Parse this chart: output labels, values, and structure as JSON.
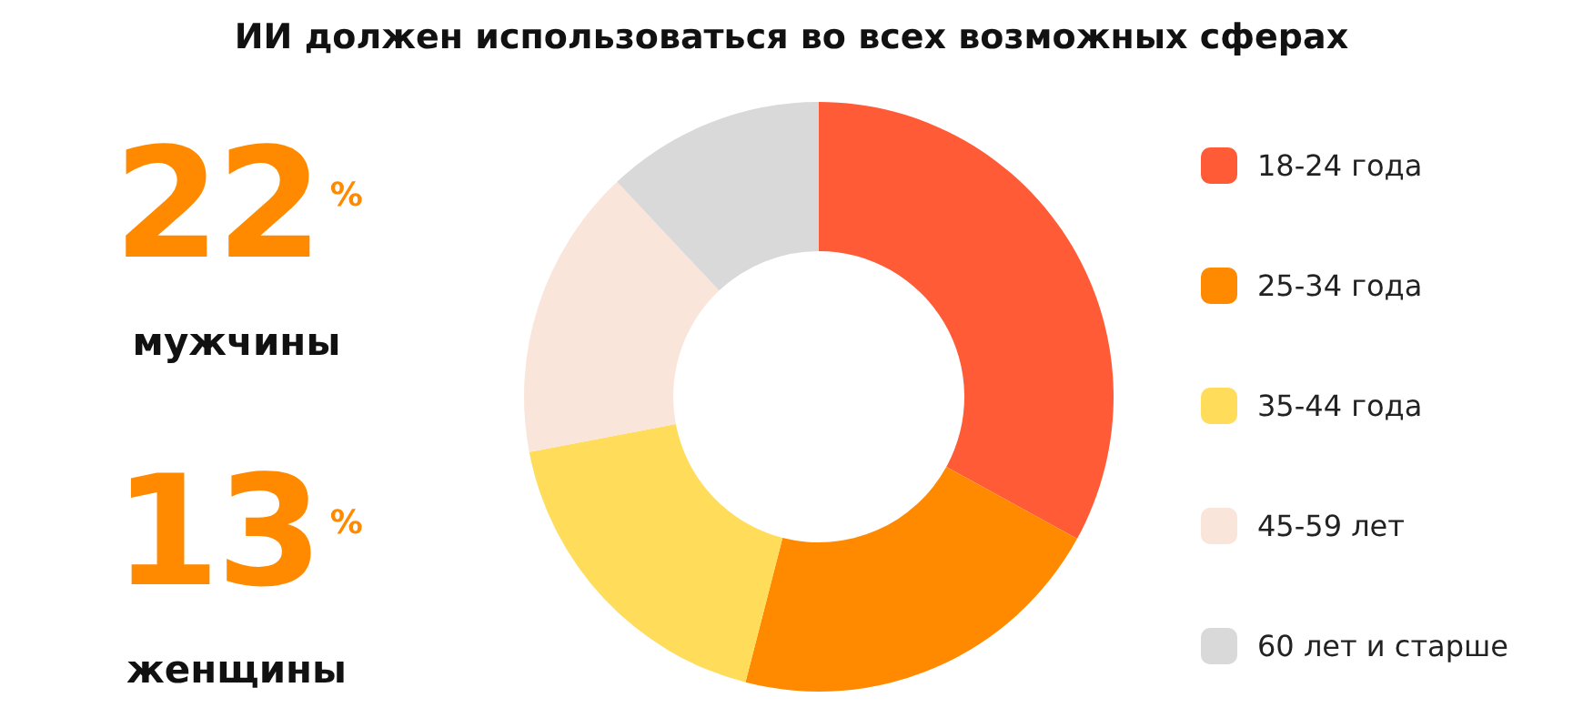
{
  "chart_data": {
    "type": "donut",
    "title": "ИИ должен использоваться во всех возможных сферах",
    "categories": [
      "18-24 года",
      "25-34 года",
      "35-44 года",
      "45-59 лет",
      "60 лет и старше"
    ],
    "values": [
      33,
      21,
      18,
      16,
      12
    ],
    "colors": [
      "#ff5b37",
      "#ff8a00",
      "#ffdc5a",
      "#fae5da",
      "#d9d9d9"
    ],
    "legend": "right",
    "annotations": [
      "22$^{%}$",
      "мужчины",
      "13$^{%}$",
      "женщины"
    ]
  }
}
